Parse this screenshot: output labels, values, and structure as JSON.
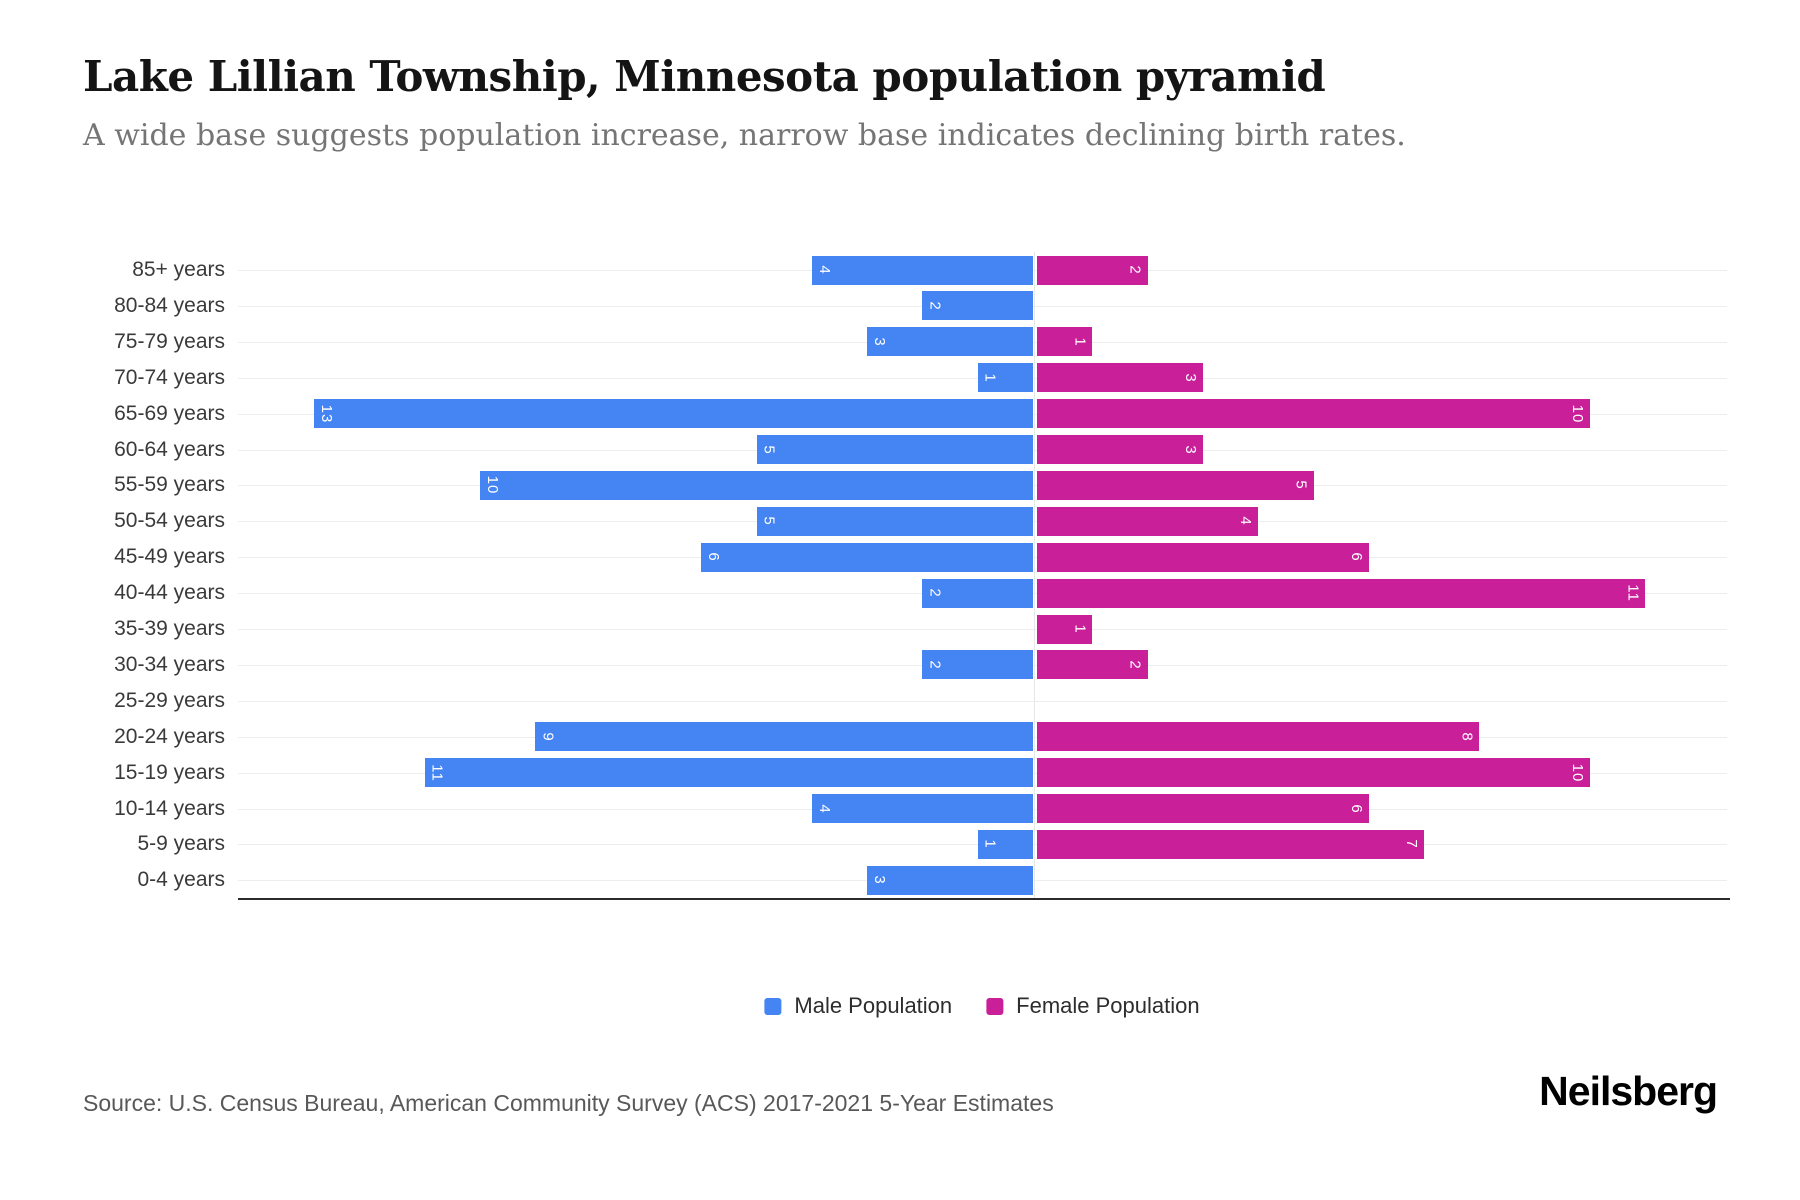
{
  "header": {
    "title": "Lake Lillian Township, Minnesota population pyramid",
    "subtitle": "A wide base suggests population increase, narrow base indicates declining birth rates."
  },
  "chart_data": {
    "type": "bar",
    "variant": "population_pyramid",
    "title": "Lake Lillian Township, Minnesota population pyramid",
    "categories": [
      "85+ years",
      "80-84 years",
      "75-79 years",
      "70-74 years",
      "65-69 years",
      "60-64 years",
      "55-59 years",
      "50-54 years",
      "45-49 years",
      "40-44 years",
      "35-39 years",
      "30-34 years",
      "25-29 years",
      "20-24 years",
      "15-19 years",
      "10-14 years",
      "5-9 years",
      "0-4 years"
    ],
    "series": [
      {
        "name": "Male Population",
        "side": "left",
        "color": "#4484F3",
        "values": [
          4,
          2,
          3,
          1,
          13,
          5,
          10,
          5,
          6,
          2,
          0,
          2,
          0,
          9,
          11,
          4,
          1,
          3
        ]
      },
      {
        "name": "Female Population",
        "side": "right",
        "color": "#C9209A",
        "values": [
          2,
          0,
          1,
          3,
          10,
          3,
          5,
          4,
          6,
          11,
          1,
          2,
          0,
          8,
          10,
          6,
          7,
          0
        ]
      }
    ],
    "value_axis_max": 13,
    "bar_labels": "values shown inside bars, white, rotated 90deg",
    "grid": true,
    "legend_position": "bottom"
  },
  "footer": {
    "source": "Source: U.S. Census Bureau, American Community Survey (ACS) 2017-2021 5-Year Estimates",
    "brand": "Neilsberg"
  }
}
